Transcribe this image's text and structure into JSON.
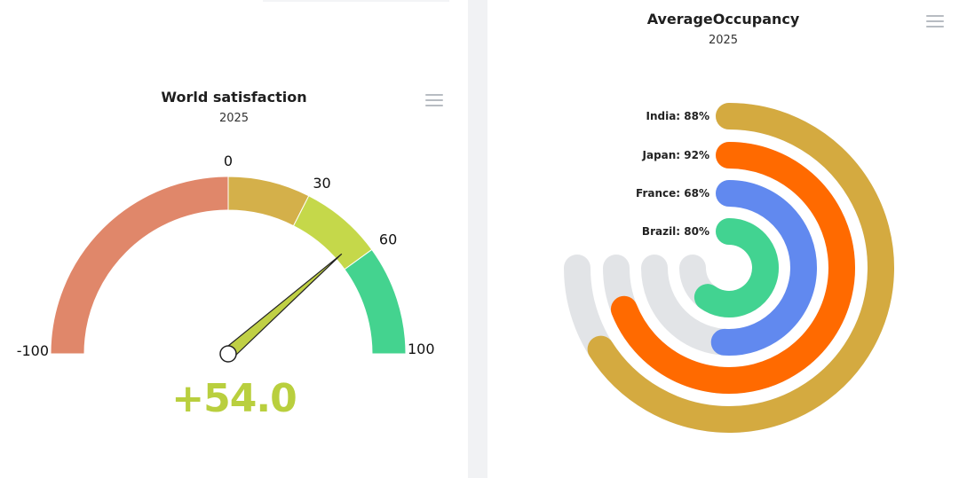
{
  "gauge_panel": {
    "title": "World satisfaction",
    "subtitle": "2025",
    "value_text": "+54.0",
    "value_color": "#b9cf3e"
  },
  "radial_panel": {
    "title": "AverageOccupancy",
    "subtitle": "2025"
  },
  "menu_icon": "hamburger-menu-icon",
  "chart_data": [
    {
      "type": "gauge",
      "title": "World satisfaction",
      "subtitle": "2025",
      "min": -100,
      "max": 100,
      "value": 54.0,
      "ticks": [
        {
          "value": -100,
          "label": "-100"
        },
        {
          "value": 0,
          "label": "0"
        },
        {
          "value": 30,
          "label": "30"
        },
        {
          "value": 60,
          "label": "60"
        },
        {
          "value": 100,
          "label": "100"
        }
      ],
      "bands": [
        {
          "from": -100,
          "to": 0,
          "color": "#e0876a"
        },
        {
          "from": 0,
          "to": 30,
          "color": "#d4b04a"
        },
        {
          "from": 30,
          "to": 60,
          "color": "#c5d84a"
        },
        {
          "from": 60,
          "to": 100,
          "color": "#44d38f"
        }
      ],
      "needle_color": "#c0d045"
    },
    {
      "type": "radialBar",
      "title": "AverageOccupancy",
      "subtitle": "2025",
      "max": 100,
      "track_color": "#e2e4e7",
      "categories": [
        "India",
        "Japan",
        "France",
        "Brazil"
      ],
      "values": [
        88,
        92,
        68,
        80
      ],
      "unit": "%",
      "labels": [
        "India: 88%",
        "Japan: 92%",
        "France: 68%",
        "Brazil: 80%"
      ],
      "colors": [
        "#d4aa40",
        "#ff6a00",
        "#6189ef",
        "#42d391"
      ]
    }
  ]
}
